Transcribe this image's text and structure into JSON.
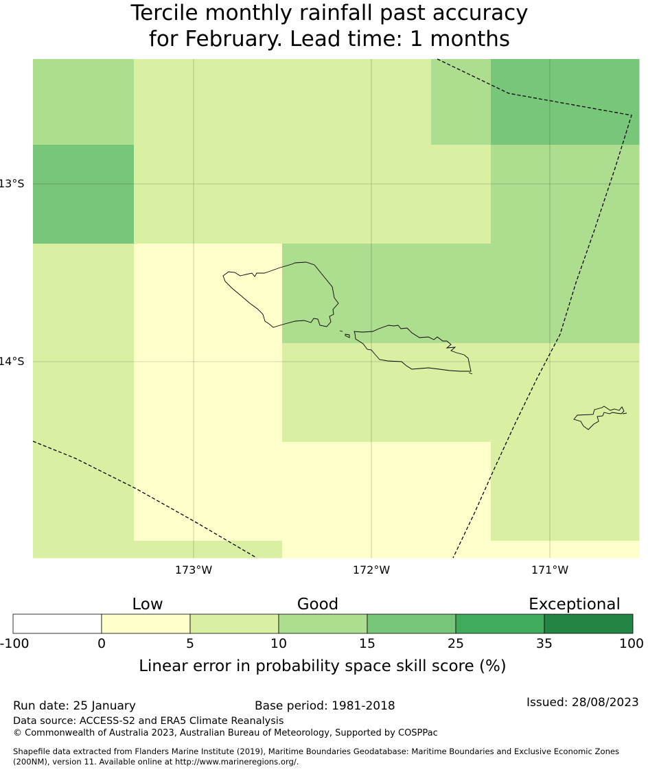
{
  "title": {
    "line1": "Tercile monthly rainfall past accuracy",
    "line2": "for February. Lead time: 1 months"
  },
  "map": {
    "lat_labels": [
      "13°S",
      "14°S"
    ],
    "lon_labels": [
      "173°W",
      "172°W",
      "171°W"
    ],
    "grid": {
      "rows": [
        [
          "15",
          "10",
          "10",
          "15",
          "25",
          "25"
        ],
        [
          "25",
          "10",
          "10",
          "10",
          "15",
          "15"
        ],
        [
          "10",
          "5",
          "15",
          "15",
          "15",
          "15"
        ],
        [
          "10",
          "5",
          "10",
          "10",
          "10",
          "10"
        ],
        [
          "10",
          "5",
          "5",
          "5",
          "10",
          "10"
        ],
        [
          "10",
          "10",
          "5",
          "5",
          "5",
          "5"
        ]
      ],
      "legend_key": "cell value = colorbar bin upper bound the cell colour falls into"
    },
    "colors": {
      "bin_0_5": "#ffffcc",
      "bin_5_10": "#d9f0a3",
      "bin_10_15": "#addd8e",
      "bin_15_25": "#78c679",
      "bin_25_35": "#41ab5d",
      "bin_35_100": "#238443",
      "line": "#000000"
    },
    "icons": [
      "coastline-icon",
      "eez-boundary-icon"
    ]
  },
  "colorbar": {
    "categories": [
      "Low",
      "Good",
      "Exceptional"
    ],
    "ticks": [
      "-100",
      "0",
      "5",
      "10",
      "15",
      "25",
      "35",
      "100"
    ],
    "colors": [
      "#ffffff",
      "#ffffcc",
      "#d9f0a3",
      "#addd8e",
      "#78c679",
      "#41ab5d",
      "#238443"
    ],
    "label": "Linear error in probability space skill score (%)"
  },
  "footer": {
    "run_date": "Run date: 25 January",
    "base_period": "Base period: 1981-2018",
    "issued": "Issued: 28/08/2023",
    "data_source": "Data source: ACCESS-S2 and ERA5 Climate Reanalysis",
    "copyright": "© Commonwealth of Australia 2023, Australian Bureau of Meteorology, Supported by COSPPac",
    "shapefile_line1": "Shapefile data extracted from Flanders Marine Institute (2019), Maritime Boundaries Geodatabase: Maritime Boundaries and Exclusive Economic Zones",
    "shapefile_line2": "(200NM), version 11. Available online at http://www.marineregions.org/."
  }
}
